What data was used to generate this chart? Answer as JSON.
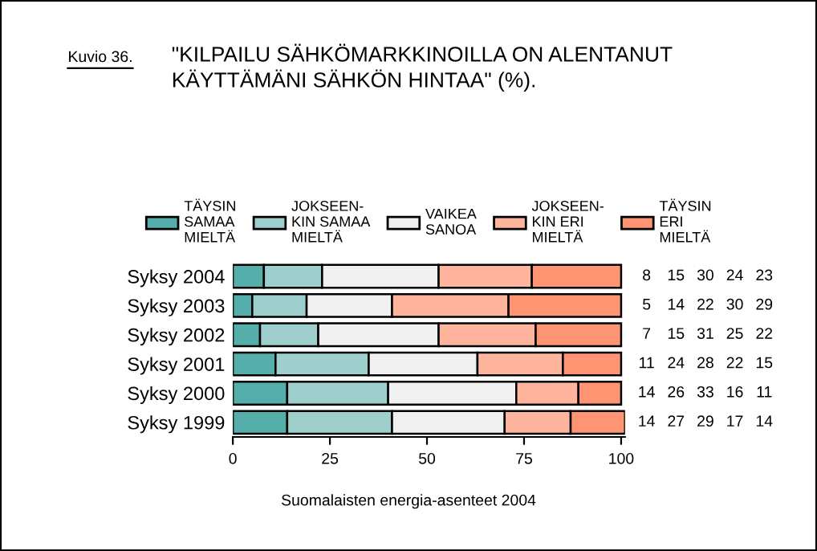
{
  "chart_data": {
    "type": "bar",
    "orientation": "horizontal",
    "stacked": true,
    "title": "\"KILPAILU SÄHKÖMARKKINOILLA ON ALENTANUT\nKÄYTTÄMÄNI SÄHKÖN HINTAA\" (%).",
    "annotations": [
      "Kuvio 36.",
      "Suomalaisten energia-asenteet 2004"
    ],
    "categories": [
      "Syksy 2004",
      "Syksy 2003",
      "Syksy 2002",
      "Syksy 2001",
      "Syksy 2000",
      "Syksy 1999"
    ],
    "series": [
      {
        "name": "TÄYSIN\nSAMAA\nMIELTÄ",
        "color": "#55aeaa",
        "values": [
          8,
          5,
          7,
          11,
          14,
          14
        ]
      },
      {
        "name": "JOKSEEN-\nKIN SAMAA\nMIELTÄ",
        "color": "#9ecfcc",
        "values": [
          15,
          14,
          15,
          24,
          26,
          27
        ]
      },
      {
        "name": "VAIKEA\nSANOA",
        "color": "#f0f0f0",
        "values": [
          30,
          22,
          31,
          28,
          33,
          29
        ]
      },
      {
        "name": "JOKSEEN-\nKIN ERI\nMIELTÄ",
        "color": "#ffb49e",
        "values": [
          24,
          30,
          25,
          22,
          16,
          17
        ]
      },
      {
        "name": "TÄYSIN\nERI\nMIELTÄ",
        "color": "#ff9473",
        "values": [
          23,
          29,
          22,
          15,
          11,
          14
        ]
      }
    ],
    "xlim": [
      0,
      101
    ],
    "xticks": [
      0,
      25,
      50,
      75,
      100
    ],
    "data_labels": true,
    "legend": "top",
    "grid": false
  }
}
